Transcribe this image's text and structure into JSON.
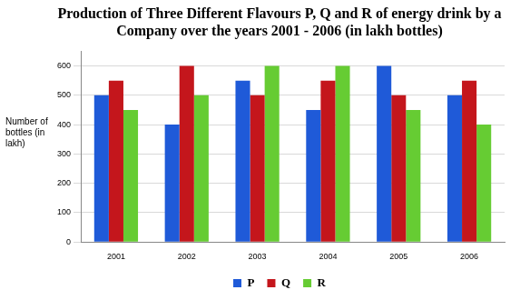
{
  "chart_data": {
    "type": "bar",
    "title": "Production of Three Different Flavours P, Q and R of energy drink by a Company over the years 2001 - 2006 (in lakh bottles)",
    "y_label": "Number of bottles (in lakh)",
    "categories": [
      "2001",
      "2002",
      "2003",
      "2004",
      "2005",
      "2006"
    ],
    "series": [
      {
        "name": "P",
        "color": "#1f5ad8",
        "values": [
          500,
          400,
          550,
          450,
          600,
          500
        ]
      },
      {
        "name": "Q",
        "color": "#c4161c",
        "values": [
          550,
          600,
          500,
          550,
          500,
          550
        ]
      },
      {
        "name": "R",
        "color": "#66cc33",
        "values": [
          450,
          500,
          600,
          600,
          450,
          400
        ]
      }
    ],
    "ylim": [
      0,
      650
    ],
    "yticks": [
      0,
      100,
      200,
      300,
      400,
      500,
      600
    ],
    "grid": true,
    "legend": "bottom"
  }
}
